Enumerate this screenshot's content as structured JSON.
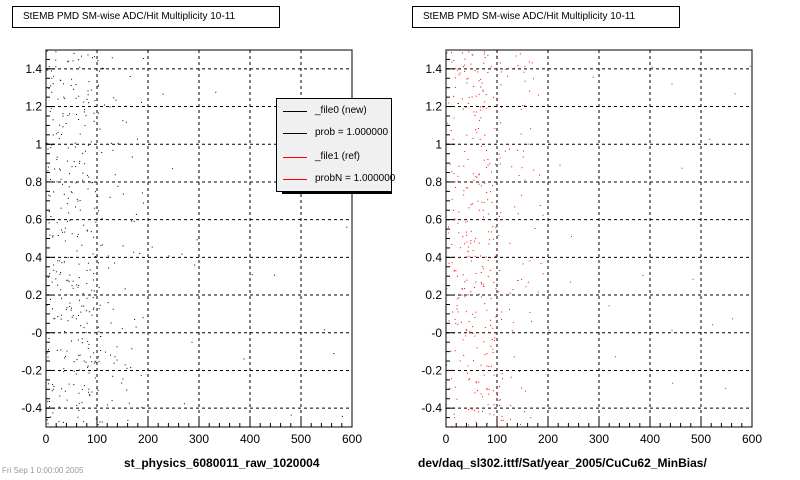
{
  "chart_data": [
    {
      "type": "scatter",
      "title": "StEMB PMD SM-wise ADC/Hit Multiplicity 10-11",
      "xlabel": "st_physics_6080011_raw_1020004",
      "ylabel": "",
      "xlim": [
        0,
        600
      ],
      "ylim": [
        -0.5,
        1.5
      ],
      "x_ticks": [
        "0",
        "100",
        "200",
        "300",
        "400",
        "500",
        "600"
      ],
      "y_ticks": [
        "-0.4",
        "-0.2",
        "-0",
        "0.2",
        "0.4",
        "0.6",
        "0.8",
        "1",
        "1.2",
        "1.4"
      ],
      "grid": true,
      "marker_color": "#000000",
      "legend_position": "top-right",
      "legend": [
        {
          "label": "_file0 (new)",
          "color": "#000000"
        },
        {
          "label": "prob = 1.000000",
          "color": "#000000"
        },
        {
          "label": "_file1 (ref)",
          "color": "#ff0000"
        },
        {
          "label": "probN = 1.000000",
          "color": "#ff0000"
        }
      ]
    },
    {
      "type": "scatter",
      "title": "StEMB PMD SM-wise ADC/Hit Multiplicity 10-11",
      "xlabel": "dev/daq_sl302.ittf/Sat/year_2005/CuCu62_MinBias/",
      "ylabel": "",
      "xlim": [
        0,
        600
      ],
      "ylim": [
        -0.5,
        1.5
      ],
      "x_ticks": [
        "0",
        "100",
        "200",
        "300",
        "400",
        "500",
        "600"
      ],
      "y_ticks": [
        "-0.4",
        "-0.2",
        "-0",
        "0.2",
        "0.4",
        "0.6",
        "0.8",
        "1",
        "1.2",
        "1.4"
      ],
      "grid": true,
      "marker_color": "#ff0000"
    }
  ],
  "footer_text": "Fri Sep 1 0:00:00 2005"
}
